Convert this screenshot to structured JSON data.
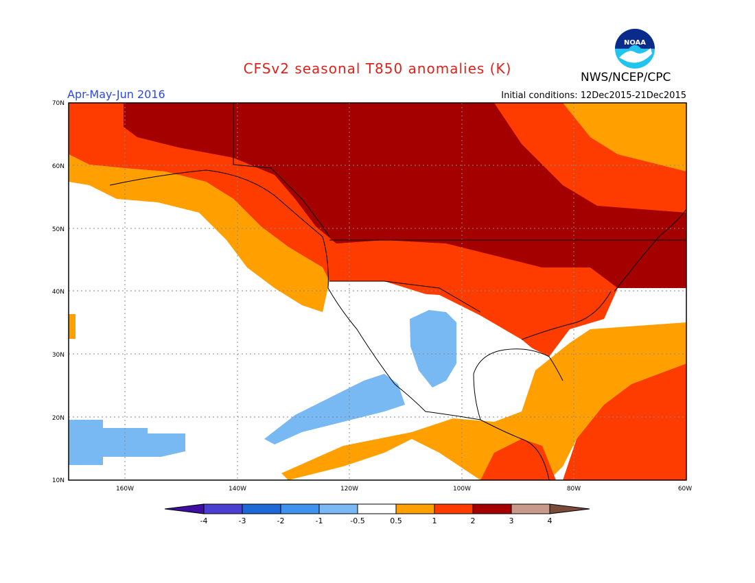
{
  "title": "CFSv2 seasonal T850 anomalies (K)",
  "season": "Apr-May-Jun 2016",
  "initial_conditions": "Initial conditions: 12Dec2015-21Dec2015",
  "credit": "NWS/NCEP/CPC",
  "logo_text": "NOAA",
  "latitude_labels": [
    "70N",
    "60N",
    "50N",
    "40N",
    "30N",
    "20N",
    "10N"
  ],
  "longitude_labels": [
    "160W",
    "140W",
    "120W",
    "100W",
    "80W",
    "60W"
  ],
  "colorbar": {
    "ticks": [
      "-4",
      "-3",
      "-2",
      "-1",
      "-0.5",
      "0.5",
      "1",
      "2",
      "3",
      "4"
    ],
    "colors": [
      "#3c0fa0",
      "#4a3fd0",
      "#1e68d8",
      "#3f93ee",
      "#7ab9f5",
      "#ffffff",
      "#ff9f00",
      "#ff3c00",
      "#a50000",
      "#c89a8c",
      "#7b4b3a"
    ]
  },
  "map_colors": {
    "cool_light": "#78b8f3",
    "warm_05_1": "#ffa000",
    "warm_1_2": "#ff3c00",
    "warm_2_3": "#a50000",
    "neutral": "#ffffff"
  }
}
